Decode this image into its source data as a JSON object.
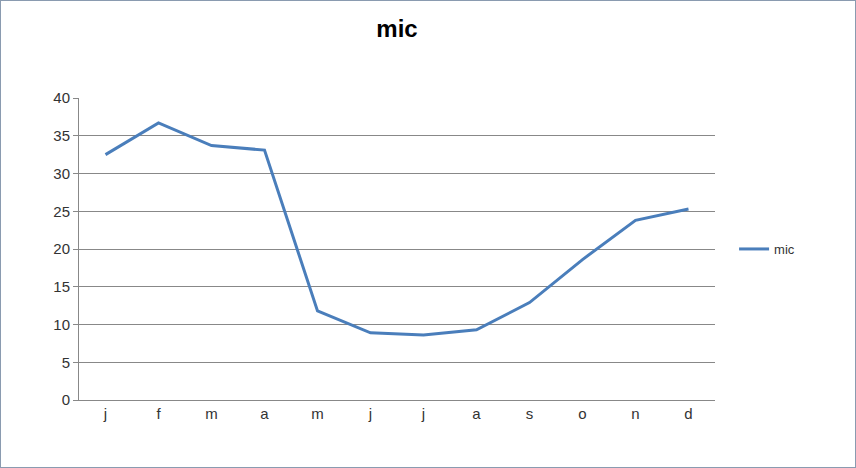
{
  "chart_data": {
    "type": "line",
    "title": "mic",
    "categories": [
      "j",
      "f",
      "m",
      "a",
      "m",
      "j",
      "j",
      "a",
      "s",
      "o",
      "n",
      "d"
    ],
    "series": [
      {
        "name": "mic",
        "color": "#4a7ebb",
        "values": [
          32.5,
          36.7,
          33.7,
          33.1,
          11.8,
          8.9,
          8.6,
          9.3,
          12.9,
          18.6,
          23.8,
          25.3
        ]
      }
    ],
    "ylim": [
      0,
      40
    ],
    "yticks": [
      0,
      5,
      10,
      15,
      20,
      25,
      30,
      35,
      40
    ],
    "grid": true,
    "legend": "right"
  }
}
